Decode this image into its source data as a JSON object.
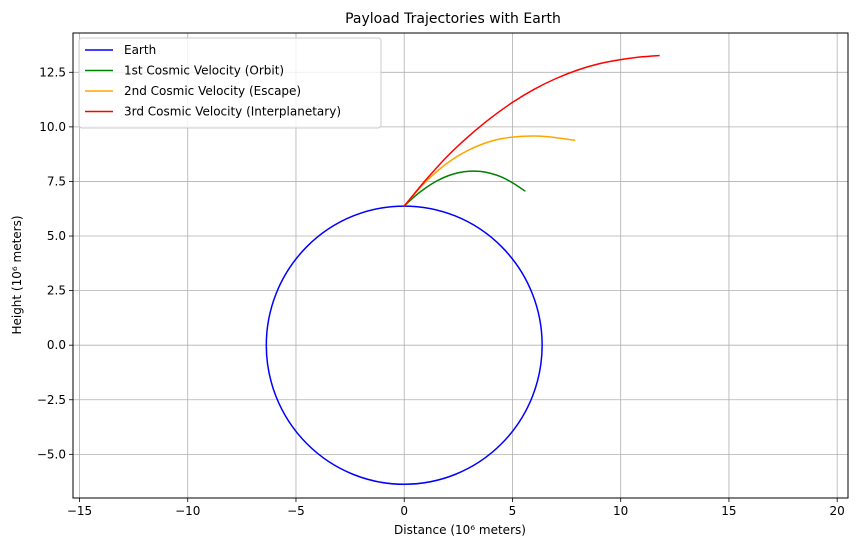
{
  "chart_data": {
    "type": "line",
    "title": "Payload Trajectories with Earth",
    "xlabel": "Distance (10⁶ meters)",
    "ylabel": "Height (10⁶ meters)",
    "xlim": [
      -15.3,
      20.5
    ],
    "ylim": [
      -7.0,
      14.3
    ],
    "xticks": [
      -15,
      -10,
      -5,
      0,
      5,
      10,
      15,
      20
    ],
    "xtick_labels": [
      "−15",
      "−10",
      "−5",
      "0",
      "5",
      "10",
      "15",
      "20"
    ],
    "yticks": [
      -5.0,
      -2.5,
      0.0,
      2.5,
      5.0,
      7.5,
      10.0,
      12.5
    ],
    "ytick_labels": [
      "−5.0",
      "−2.5",
      "0.0",
      "2.5",
      "5.0",
      "7.5",
      "10.0",
      "12.5"
    ],
    "grid": true,
    "legend_position": "top-left",
    "series": [
      {
        "name": "Earth",
        "color": "#0000ff",
        "shape": "circle",
        "center": [
          0,
          0
        ],
        "radius": 6.371
      },
      {
        "name": "1st Cosmic Velocity (Orbit)",
        "color": "#008000",
        "x": [
          0.0,
          0.5,
          1.0,
          1.5,
          2.0,
          2.5,
          3.0,
          3.5,
          4.0,
          4.5,
          5.0,
          5.6
        ],
        "y": [
          6.37,
          6.83,
          7.21,
          7.52,
          7.75,
          7.9,
          7.97,
          7.96,
          7.87,
          7.7,
          7.44,
          7.05
        ]
      },
      {
        "name": "2nd Cosmic Velocity (Escape)",
        "color": "#ffa500",
        "x": [
          0.0,
          0.5,
          1.0,
          1.5,
          2.0,
          2.5,
          3.0,
          3.5,
          4.0,
          4.5,
          5.0,
          5.5,
          6.0,
          6.5,
          7.0,
          7.5,
          7.9
        ],
        "y": [
          6.37,
          6.96,
          7.49,
          7.95,
          8.35,
          8.68,
          8.95,
          9.17,
          9.34,
          9.46,
          9.53,
          9.57,
          9.58,
          9.56,
          9.51,
          9.44,
          9.38
        ]
      },
      {
        "name": "3rd Cosmic Velocity (Interplanetary)",
        "color": "#ff0000",
        "x": [
          0.0,
          1.0,
          2.0,
          3.0,
          4.0,
          5.0,
          6.0,
          7.0,
          8.0,
          9.0,
          10.0,
          11.0,
          11.8
        ],
        "y": [
          6.37,
          7.57,
          8.66,
          9.59,
          10.41,
          11.12,
          11.72,
          12.21,
          12.6,
          12.89,
          13.08,
          13.21,
          13.27
        ]
      }
    ]
  }
}
